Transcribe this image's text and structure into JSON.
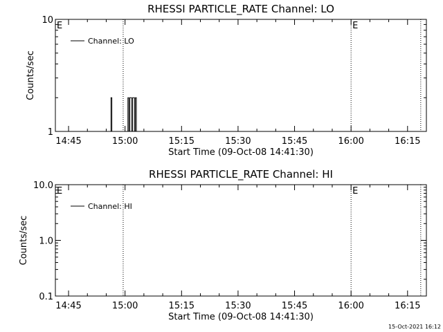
{
  "footer_stamp": "15-Oct-2021 16:12",
  "chart_data": [
    {
      "type": "line",
      "title": "RHESSI PARTICLE_RATE Channel: LO",
      "xlabel": "Start Time (09-Oct-08 14:41:30)",
      "ylabel": "Counts/sec",
      "yscale": "log",
      "xlim": [
        "14:41:30",
        "16:20:00"
      ],
      "ylim": [
        1,
        10
      ],
      "x_tick_labels": [
        "14:45",
        "15:00",
        "15:15",
        "15:30",
        "15:45",
        "16:00",
        "16:15"
      ],
      "y_tick_labels": [
        {
          "value": 1,
          "label": "1"
        },
        {
          "value": 10,
          "label": "10"
        }
      ],
      "legend": {
        "label": "Channel: LO",
        "position": "top-left"
      },
      "vertical_lines": [
        "14:59:30",
        "16:00:00",
        "16:18:30"
      ],
      "event_marks": [
        {
          "time": "14:41:30",
          "label": "E"
        },
        {
          "time": "16:00:00",
          "label": "E"
        }
      ],
      "series": [
        {
          "name": "Channel: LO",
          "points": [
            [
              "14:56:00",
              1
            ],
            [
              "14:56:15",
              2
            ],
            [
              "14:56:30",
              1
            ],
            [
              "15:00:30",
              1
            ],
            [
              "15:00:45",
              2
            ],
            [
              "15:01:00",
              1
            ],
            [
              "15:01:15",
              2
            ],
            [
              "15:01:30",
              2
            ],
            [
              "15:01:45",
              1
            ],
            [
              "15:02:00",
              2
            ],
            [
              "15:02:15",
              2
            ],
            [
              "15:02:30",
              1
            ],
            [
              "15:02:45",
              2
            ],
            [
              "15:03:00",
              1
            ]
          ]
        }
      ]
    },
    {
      "type": "line",
      "title": "RHESSI PARTICLE_RATE Channel: HI",
      "xlabel": "Start Time (09-Oct-08 14:41:30)",
      "ylabel": "Counts/sec",
      "yscale": "log",
      "xlim": [
        "14:41:30",
        "16:20:00"
      ],
      "ylim": [
        0.1,
        10
      ],
      "x_tick_labels": [
        "14:45",
        "15:00",
        "15:15",
        "15:30",
        "15:45",
        "16:00",
        "16:15"
      ],
      "y_tick_labels": [
        {
          "value": 0.1,
          "label": "0.1"
        },
        {
          "value": 1,
          "label": "1.0"
        },
        {
          "value": 10,
          "label": "10.0"
        }
      ],
      "legend": {
        "label": "Channel: HI",
        "position": "top-left"
      },
      "vertical_lines": [
        "14:59:30",
        "16:00:00",
        "16:18:30"
      ],
      "event_marks": [
        {
          "time": "14:41:30",
          "label": "E"
        },
        {
          "time": "16:00:00",
          "label": "E"
        }
      ],
      "series": [
        {
          "name": "Channel: HI",
          "points": []
        }
      ]
    }
  ]
}
